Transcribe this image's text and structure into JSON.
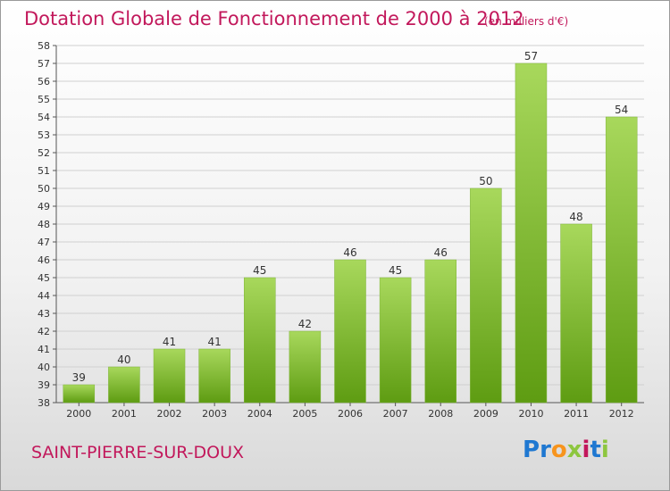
{
  "header": {
    "title": "Dotation Globale de Fonctionnement de 2000 à 2012",
    "unit": "(en milliers d'€)"
  },
  "footer": {
    "commune": "SAINT-PIERRE-SUR-DOUX",
    "logo_letters": [
      "P",
      "r",
      "o",
      "x",
      "i",
      "t",
      "i"
    ],
    "logo_colors": [
      "#1f78d1",
      "#1f78d1",
      "#f7941d",
      "#8dc63f",
      "#c2185b",
      "#1f78d1",
      "#8dc63f"
    ]
  },
  "colors": {
    "bar_light": "#a8d85c",
    "bar_dark": "#5e9c12",
    "text_accent": "#c2185b",
    "grid": "#d0d0d0",
    "axis": "#555555"
  },
  "chart_data": {
    "type": "bar",
    "title": "Dotation Globale de Fonctionnement de 2000 à 2012",
    "subtitle": "(en milliers d'€)",
    "categories": [
      "2000",
      "2001",
      "2002",
      "2003",
      "2004",
      "2005",
      "2006",
      "2007",
      "2008",
      "2009",
      "2010",
      "2011",
      "2012"
    ],
    "values": [
      39,
      40,
      41,
      41,
      45,
      42,
      46,
      45,
      46,
      50,
      57,
      48,
      54
    ],
    "ylim": [
      38,
      58
    ],
    "yticks": [
      38,
      39,
      40,
      41,
      42,
      43,
      44,
      45,
      46,
      47,
      48,
      49,
      50,
      51,
      52,
      53,
      54,
      55,
      56,
      57,
      58
    ],
    "grid": true,
    "data_labels": true
  }
}
